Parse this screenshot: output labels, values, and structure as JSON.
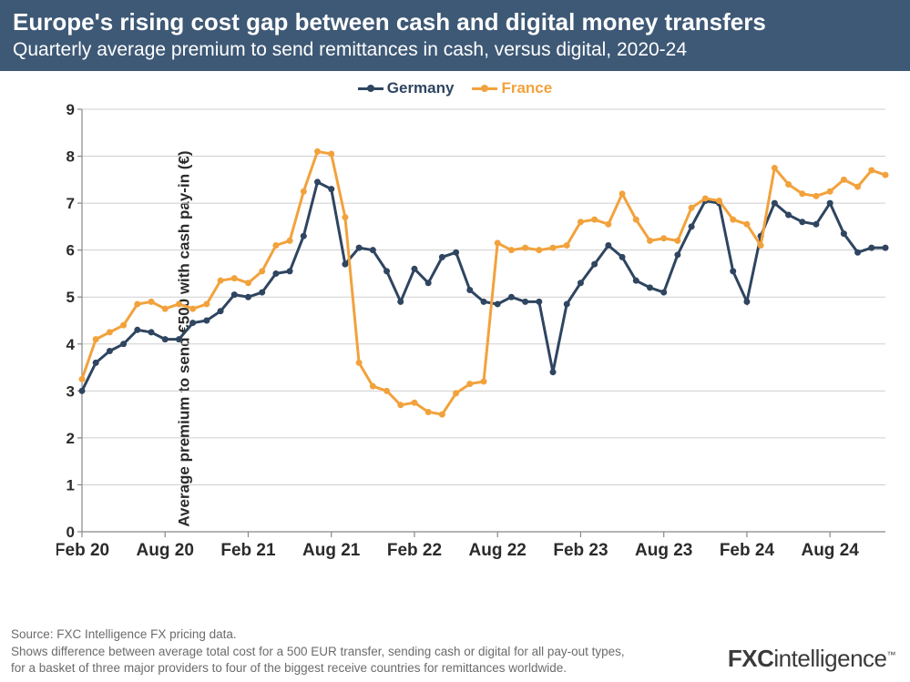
{
  "header": {
    "title": "Europe's rising cost gap between cash and digital money transfers",
    "subtitle": "Quarterly average premium to send remittances in cash, versus digital, 2020-24",
    "bg_color": "#3e5976",
    "text_color": "#ffffff",
    "title_fontsize": 26,
    "subtitle_fontsize": 21
  },
  "chart": {
    "type": "line",
    "background_color": "#ffffff",
    "grid_color": "#cfcfcf",
    "axis_color": "#888888",
    "y_label": "Average premium to send €500 with cash pay-in (€)",
    "y_label_fontsize": 17,
    "ylim": [
      0,
      9
    ],
    "ytick_step": 1,
    "x_ticks": [
      "Feb 20",
      "Aug 20",
      "Feb 21",
      "Aug 21",
      "Feb 22",
      "Aug 22",
      "Feb 23",
      "Aug 23",
      "Feb 24",
      "Aug 24"
    ],
    "x_tick_indices_in_data": [
      0,
      6,
      12,
      18,
      24,
      30,
      36,
      42,
      48,
      54
    ],
    "n_points": 59,
    "line_width": 3,
    "marker_radius": 3.5,
    "tick_label_fontsize": 17,
    "x_tick_label_fontsize": 19,
    "legend": {
      "position": "top-center",
      "fontsize": 17,
      "items": [
        {
          "label": "Germany",
          "color": "#2f4560"
        },
        {
          "label": "France",
          "color": "#f2a23c"
        }
      ]
    },
    "series": [
      {
        "name": "Germany",
        "color": "#2f4560",
        "values": [
          3.0,
          3.6,
          3.85,
          4.0,
          4.3,
          4.25,
          4.1,
          4.1,
          4.45,
          4.5,
          4.7,
          5.05,
          5.0,
          5.1,
          5.5,
          5.55,
          6.3,
          7.45,
          7.3,
          5.7,
          6.05,
          6.0,
          5.55,
          4.9,
          5.6,
          5.3,
          5.85,
          5.95,
          5.15,
          4.9,
          4.85,
          5.0,
          4.9,
          4.9,
          3.4,
          4.85,
          5.3,
          5.7,
          6.1,
          5.85,
          5.35,
          5.2,
          5.1,
          5.9,
          6.5,
          7.05,
          7.0,
          5.55,
          4.9,
          6.3,
          7.0,
          6.75,
          6.6,
          6.55,
          7.0,
          6.35,
          5.95,
          6.05,
          6.05
        ]
      },
      {
        "name": "France",
        "color": "#f2a23c",
        "values": [
          3.25,
          4.1,
          4.25,
          4.4,
          4.85,
          4.9,
          4.75,
          4.85,
          4.75,
          4.85,
          5.35,
          5.4,
          5.3,
          5.55,
          6.1,
          6.2,
          7.25,
          8.1,
          8.05,
          6.7,
          3.6,
          3.1,
          3.0,
          2.7,
          2.75,
          2.55,
          2.5,
          2.95,
          3.15,
          3.2,
          6.15,
          6.0,
          6.05,
          6.0,
          6.05,
          6.1,
          6.6,
          6.65,
          6.55,
          7.2,
          6.65,
          6.2,
          6.25,
          6.2,
          6.9,
          7.1,
          7.05,
          6.65,
          6.55,
          6.1,
          7.75,
          7.4,
          7.2,
          7.15,
          7.25,
          7.5,
          7.35,
          7.7,
          7.6
        ]
      }
    ]
  },
  "footer": {
    "source_line": "Source: FXC Intelligence FX pricing data.",
    "desc_line1": "Shows difference between average total cost for a 500 EUR transfer, sending cash or digital for all pay-out types,",
    "desc_line2": "for a basket of three major providers to four of the biggest receive countries for remittances worldwide.",
    "text_color": "#6b6b6b",
    "fontsize": 13.5
  },
  "brand": {
    "bold_part": "FXC",
    "normal_part": "intelligence",
    "color": "#3a3a3a"
  }
}
